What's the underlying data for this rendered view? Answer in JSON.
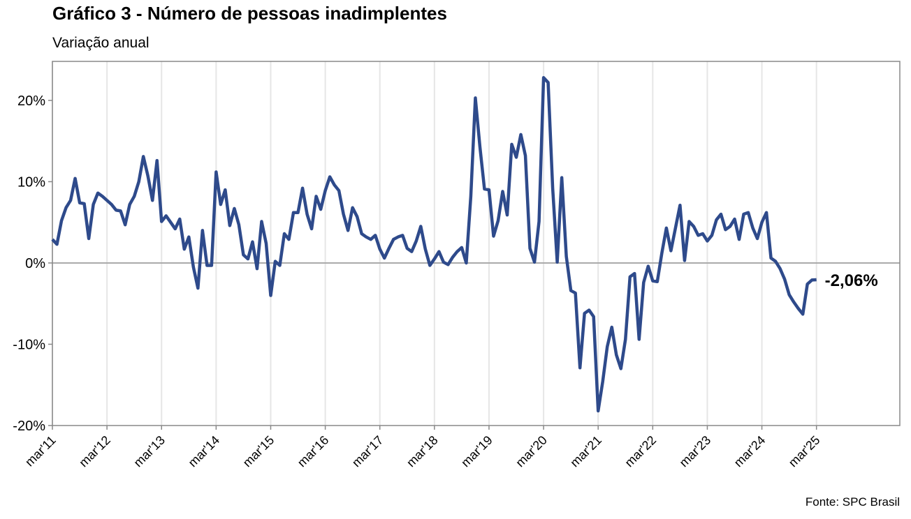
{
  "chart_data": {
    "type": "line",
    "title": "Gráfico 3 - Número de pessoas inadimplentes",
    "subtitle": "Variação anual",
    "source": "Fonte: SPC Brasil",
    "end_label": "-2,06%",
    "color": "#2e4a8b",
    "categories": [
      "mar'11",
      null,
      null,
      null,
      null,
      null,
      null,
      null,
      null,
      null,
      null,
      null,
      "mar'12",
      null,
      null,
      null,
      null,
      null,
      null,
      null,
      null,
      null,
      null,
      null,
      "mar'13",
      null,
      null,
      null,
      null,
      null,
      null,
      null,
      null,
      null,
      null,
      null,
      "mar'14",
      null,
      null,
      null,
      null,
      null,
      null,
      null,
      null,
      null,
      null,
      null,
      "mar'15",
      null,
      null,
      null,
      null,
      null,
      null,
      null,
      null,
      null,
      null,
      null,
      "mar'16",
      null,
      null,
      null,
      null,
      null,
      null,
      null,
      null,
      null,
      null,
      null,
      "mar'17",
      null,
      null,
      null,
      null,
      null,
      null,
      null,
      null,
      null,
      null,
      null,
      "mar'18",
      null,
      null,
      null,
      null,
      null,
      null,
      null,
      null,
      null,
      null,
      null,
      "mar'19",
      null,
      null,
      null,
      null,
      null,
      null,
      null,
      null,
      null,
      null,
      null,
      "mar'20",
      null,
      null,
      null,
      null,
      null,
      null,
      null,
      null,
      null,
      null,
      null,
      "mar'21",
      null,
      null,
      null,
      null,
      null,
      null,
      null,
      null,
      null,
      null,
      null,
      "mar'22",
      null,
      null,
      null,
      null,
      null,
      null,
      null,
      null,
      null,
      null,
      null,
      "mar'23",
      null,
      null,
      null,
      null,
      null,
      null,
      null,
      null,
      null,
      null,
      null,
      "mar'24",
      null,
      null,
      null,
      null,
      null,
      null,
      null,
      null,
      null,
      null,
      null,
      "mar'25"
    ],
    "values": [
      2.9,
      2.3,
      5.2,
      6.8,
      7.7,
      10.4,
      7.4,
      7.3,
      3.0,
      7.2,
      8.6,
      8.2,
      7.7,
      7.2,
      6.5,
      6.4,
      4.7,
      7.2,
      8.2,
      10.0,
      13.1,
      10.7,
      7.7,
      12.6,
      5.1,
      5.8,
      5.0,
      4.2,
      5.4,
      1.7,
      3.2,
      -0.5,
      -3.1,
      4.0,
      -0.3,
      -0.3,
      11.2,
      7.2,
      9.0,
      4.6,
      6.7,
      4.7,
      1.0,
      0.5,
      2.6,
      -0.7,
      5.1,
      2.4,
      -4.0,
      0.2,
      -0.3,
      3.6,
      2.9,
      6.2,
      6.2,
      9.2,
      6.0,
      4.2,
      8.2,
      6.6,
      8.9,
      10.6,
      9.6,
      8.9,
      6.0,
      4.0,
      6.8,
      5.7,
      3.6,
      3.2,
      2.9,
      3.4,
      1.7,
      0.6,
      1.8,
      2.9,
      3.2,
      3.4,
      1.8,
      1.4,
      2.7,
      4.5,
      1.7,
      -0.3,
      0.5,
      1.4,
      0.1,
      -0.2,
      0.7,
      1.4,
      1.9,
      0.0,
      8.2,
      20.3,
      14.3,
      9.1,
      9.0,
      3.3,
      5.2,
      8.8,
      5.9,
      14.6,
      13.0,
      15.8,
      13.2,
      1.8,
      0.1,
      5.1,
      22.8,
      22.2,
      9.2,
      0.1,
      10.5,
      0.8,
      -3.4,
      -3.7,
      -12.9,
      -6.2,
      -5.8,
      -6.6,
      -18.2,
      -14.6,
      -10.3,
      -7.9,
      -11.3,
      -13.0,
      -9.4,
      -1.7,
      -1.3,
      -9.4,
      -2.4,
      -0.4,
      -2.2,
      -2.3,
      1.2,
      4.3,
      1.5,
      4.3,
      7.1,
      0.3,
      5.1,
      4.5,
      3.4,
      3.6,
      2.7,
      3.4,
      5.3,
      6.0,
      4.1,
      4.5,
      5.4,
      2.9,
      6.0,
      6.2,
      4.3,
      3.0,
      5.0,
      6.2,
      0.6,
      0.2,
      -0.7,
      -2.0,
      -3.9,
      -4.8,
      -5.6,
      -6.3,
      -2.6,
      -2.1,
      -2.06
    ],
    "ylim": [
      -20,
      24.8
    ],
    "yticks": [
      {
        "value": -20,
        "label": "-20%"
      },
      {
        "value": -10,
        "label": "-10%"
      },
      {
        "value": 0,
        "label": "0%"
      },
      {
        "value": 10,
        "label": "10%"
      },
      {
        "value": 20,
        "label": "20%"
      }
    ],
    "grid": true
  }
}
